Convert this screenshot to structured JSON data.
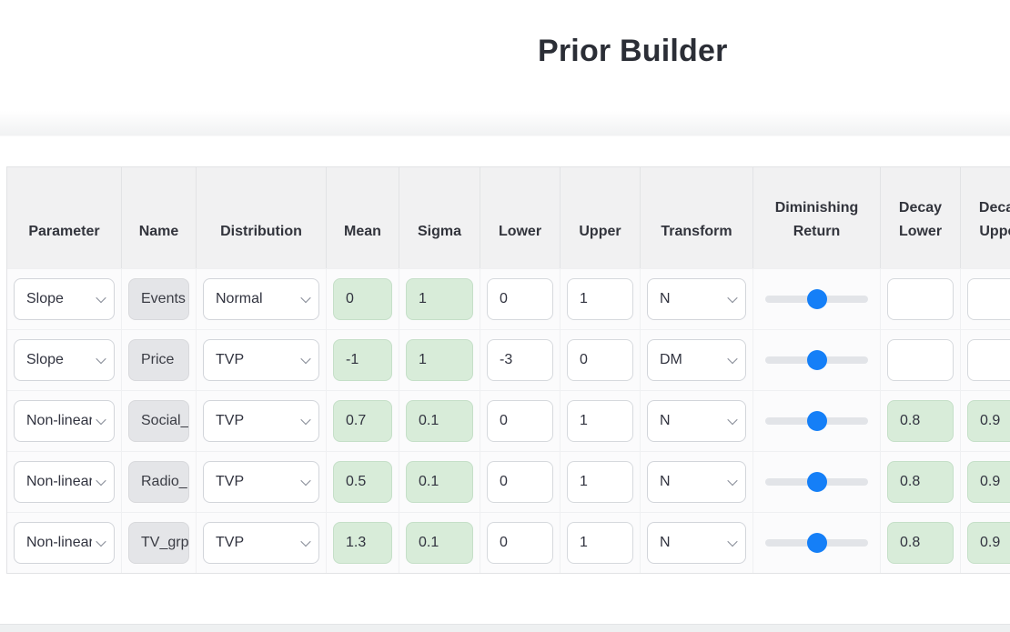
{
  "app": {
    "title": "Prior Builder"
  },
  "colors": {
    "accent_blue": "#157ff7",
    "green_cell_bg": "#d8ecd9",
    "disabled_cell_bg": "#e4e5e8",
    "header_bg": "#f1f1f2"
  },
  "table": {
    "columns": [
      {
        "id": "parameter",
        "label": "Parameter"
      },
      {
        "id": "name",
        "label": "Name"
      },
      {
        "id": "distribution",
        "label": "Distribution"
      },
      {
        "id": "mean",
        "label": "Mean"
      },
      {
        "id": "sigma",
        "label": "Sigma"
      },
      {
        "id": "lower",
        "label": "Lower"
      },
      {
        "id": "upper",
        "label": "Upper"
      },
      {
        "id": "transform",
        "label": "Transform"
      },
      {
        "id": "diminishing_return",
        "label": "Diminishing Return"
      },
      {
        "id": "decay_lower",
        "label": "Decay Lower"
      },
      {
        "id": "decay_upper",
        "label": "Decay Upper"
      }
    ],
    "rows": [
      {
        "parameter": "Slope",
        "name": "Events",
        "distribution": "Normal",
        "mean": "0",
        "sigma": "1",
        "lower": "0",
        "upper": "1",
        "transform": "N",
        "diminishing_return": "50%",
        "decay_lower": "",
        "decay_upper": ""
      },
      {
        "parameter": "Slope",
        "name": "Price",
        "distribution": "TVP",
        "mean": "-1",
        "sigma": "1",
        "lower": "-3",
        "upper": "0",
        "transform": "DM",
        "diminishing_return": "50%",
        "decay_lower": "",
        "decay_upper": ""
      },
      {
        "parameter": "Non-linear",
        "name": "Social_",
        "distribution": "TVP",
        "mean": "0.7",
        "sigma": "0.1",
        "lower": "0",
        "upper": "1",
        "transform": "N",
        "diminishing_return": "50%",
        "decay_lower": "0.8",
        "decay_upper": "0.9"
      },
      {
        "parameter": "Non-linear",
        "name": "Radio_",
        "distribution": "TVP",
        "mean": "0.5",
        "sigma": "0.1",
        "lower": "0",
        "upper": "1",
        "transform": "N",
        "diminishing_return": "50%",
        "decay_lower": "0.8",
        "decay_upper": "0.9"
      },
      {
        "parameter": "Non-linear",
        "name": "TV_grp",
        "distribution": "TVP",
        "mean": "1.3",
        "sigma": "0.1",
        "lower": "0",
        "upper": "1",
        "transform": "N",
        "diminishing_return": "50%",
        "decay_lower": "0.8",
        "decay_upper": "0.9"
      }
    ]
  }
}
